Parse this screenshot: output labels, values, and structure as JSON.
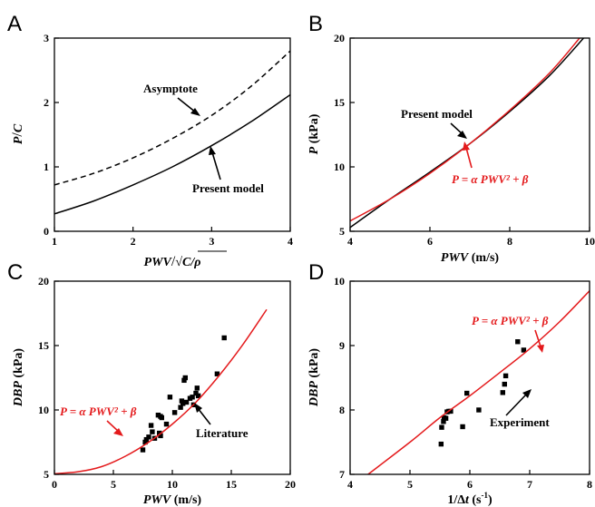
{
  "chart_data": [
    {
      "panel": "A",
      "type": "line",
      "xlim": [
        1,
        4
      ],
      "ylim": [
        0,
        3
      ],
      "xticks": [
        "1",
        "2",
        "3",
        "4"
      ],
      "yticks": [
        "0",
        "1",
        "2",
        "3"
      ],
      "xlabel_parts": [
        "PWV",
        "/",
        "√",
        "C/ρ"
      ],
      "ylabel_parts": [
        "P",
        "/",
        "C"
      ],
      "series": [
        {
          "name": "Asymptote",
          "style": "dashed",
          "color": "#000000",
          "x": [
            1.0,
            1.5,
            2.0,
            2.5,
            3.0,
            3.5,
            4.0
          ],
          "y": [
            0.72,
            0.9,
            1.14,
            1.44,
            1.8,
            2.25,
            2.8
          ]
        },
        {
          "name": "Present model",
          "style": "solid",
          "color": "#000000",
          "x": [
            1.0,
            1.5,
            2.0,
            2.5,
            3.0,
            3.5,
            4.0
          ],
          "y": [
            0.27,
            0.47,
            0.72,
            1.0,
            1.33,
            1.7,
            2.12
          ]
        }
      ],
      "annotations": [
        {
          "text": "Asymptote",
          "color": "#000000"
        },
        {
          "text": "Present model",
          "color": "#000000"
        }
      ]
    },
    {
      "panel": "B",
      "type": "line",
      "xlim": [
        4,
        10
      ],
      "ylim": [
        5,
        20
      ],
      "xticks": [
        "4",
        "6",
        "8",
        "10"
      ],
      "yticks": [
        "5",
        "10",
        "15",
        "20"
      ],
      "xlabel_parts": [
        "PWV",
        " (m/s)"
      ],
      "ylabel_parts": [
        "P",
        " (kPa)"
      ],
      "series": [
        {
          "name": "Present model",
          "style": "solid",
          "color": "#000000",
          "x": [
            4,
            5,
            6,
            7,
            8,
            9,
            9.85
          ],
          "y": [
            5.3,
            7.5,
            9.6,
            11.8,
            14.3,
            17.1,
            20.0
          ]
        },
        {
          "name": "P = α PWV² + β",
          "style": "solid",
          "color": "#e41a1c",
          "x": [
            4,
            5,
            6,
            7,
            8,
            9,
            9.75
          ],
          "y": [
            5.8,
            7.5,
            9.5,
            11.8,
            14.4,
            17.3,
            20.0
          ]
        }
      ],
      "annotations": [
        {
          "text": "Present model",
          "color": "#000000"
        },
        {
          "text": "P = α PWV² + β",
          "color": "#e41a1c"
        }
      ]
    },
    {
      "panel": "C",
      "type": "scatter",
      "xlim": [
        0,
        20
      ],
      "ylim": [
        5,
        20
      ],
      "xticks": [
        "0",
        "5",
        "10",
        "15",
        "20"
      ],
      "yticks": [
        "5",
        "10",
        "15",
        "20"
      ],
      "xlabel_parts": [
        "PWV",
        " (m/s)"
      ],
      "ylabel_parts": [
        "DBP",
        " (kPa)"
      ],
      "series": [
        {
          "name": "Literature",
          "style": "markers",
          "color": "#000000",
          "x": [
            7.5,
            7.7,
            7.8,
            8.0,
            8.2,
            8.3,
            8.5,
            8.8,
            8.9,
            9.0,
            9.0,
            9.1,
            9.5,
            9.8,
            10.2,
            10.7,
            10.8,
            10.9,
            11.0,
            11.1,
            11.2,
            11.5,
            11.7,
            11.8,
            12.0,
            12.1,
            12.2,
            13.8,
            14.4
          ],
          "y": [
            6.9,
            7.5,
            7.7,
            7.9,
            8.8,
            8.3,
            7.8,
            9.6,
            8.2,
            8.0,
            9.5,
            9.4,
            8.9,
            11.0,
            9.8,
            10.2,
            10.7,
            10.5,
            12.3,
            12.5,
            10.6,
            10.9,
            11.0,
            10.4,
            11.3,
            11.7,
            11.1,
            12.8,
            15.6
          ]
        },
        {
          "name": "P = α PWV² + β",
          "style": "solid",
          "color": "#e41a1c",
          "x": [
            0,
            2,
            4,
            6,
            8,
            10,
            12,
            14,
            16,
            18
          ],
          "y": [
            5.05,
            5.2,
            5.6,
            6.4,
            7.5,
            8.9,
            10.6,
            12.7,
            15.1,
            17.8
          ]
        }
      ],
      "annotations": [
        {
          "text": "P = α PWV² + β",
          "color": "#e41a1c"
        },
        {
          "text": "Literature",
          "color": "#000000"
        }
      ]
    },
    {
      "panel": "D",
      "type": "scatter",
      "xlim": [
        4,
        8
      ],
      "ylim": [
        7,
        10
      ],
      "xticks": [
        "4",
        "5",
        "6",
        "7",
        "8"
      ],
      "yticks": [
        "7",
        "8",
        "9",
        "10"
      ],
      "xlabel_parts": [
        "1/Δ",
        "t",
        " (s",
        "-1",
        ")"
      ],
      "ylabel_parts": [
        "DBP",
        " (kPa)"
      ],
      "series": [
        {
          "name": "Experiment",
          "style": "markers",
          "color": "#000000",
          "x": [
            5.52,
            5.53,
            5.56,
            5.57,
            5.6,
            5.62,
            5.65,
            5.68,
            5.88,
            5.95,
            6.15,
            6.55,
            6.58,
            6.6,
            6.8,
            6.9
          ],
          "y": [
            7.47,
            7.73,
            7.82,
            7.88,
            7.87,
            7.97,
            7.98,
            7.98,
            7.74,
            8.26,
            8.0,
            8.27,
            8.4,
            8.53,
            9.06,
            8.93
          ]
        },
        {
          "name": "P = α PWV² + β",
          "style": "solid",
          "color": "#e41a1c",
          "x": [
            4.3,
            5.0,
            5.5,
            6.0,
            6.5,
            7.0,
            7.5,
            8.0
          ],
          "y": [
            7.0,
            7.5,
            7.88,
            8.22,
            8.58,
            8.95,
            9.37,
            9.85
          ]
        }
      ],
      "annotations": [
        {
          "text": "P = α PWV² + β",
          "color": "#e41a1c"
        },
        {
          "text": "Experiment",
          "color": "#000000"
        }
      ]
    }
  ]
}
